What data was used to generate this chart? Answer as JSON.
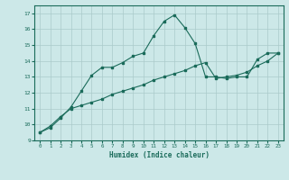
{
  "xlabel": "Humidex (Indice chaleur)",
  "background_color": "#cce8e8",
  "grid_color": "#aacaca",
  "line_color": "#1a6b5a",
  "xlim": [
    -0.5,
    23.5
  ],
  "ylim": [
    9,
    17.5
  ],
  "xticks": [
    0,
    1,
    2,
    3,
    4,
    5,
    6,
    7,
    8,
    9,
    10,
    11,
    12,
    13,
    14,
    15,
    16,
    17,
    18,
    19,
    20,
    21,
    22,
    23
  ],
  "yticks": [
    9,
    10,
    11,
    12,
    13,
    14,
    15,
    16,
    17
  ],
  "line1_x": [
    0,
    1,
    2,
    3,
    4,
    5,
    6,
    7,
    8,
    9,
    10,
    11,
    12,
    13,
    14,
    15,
    16,
    17,
    18,
    19,
    20,
    21,
    22,
    23
  ],
  "line1_y": [
    9.5,
    9.8,
    10.4,
    11.1,
    12.1,
    13.1,
    13.6,
    13.6,
    13.9,
    14.3,
    14.5,
    15.6,
    16.5,
    16.9,
    16.1,
    15.1,
    13.0,
    13.0,
    12.9,
    13.0,
    13.0,
    14.1,
    14.5,
    14.5
  ],
  "line2_x": [
    0,
    1,
    2,
    3,
    4,
    5,
    6,
    7,
    8,
    9,
    10,
    11,
    12,
    13,
    14,
    15,
    16,
    17,
    18,
    19,
    20,
    21,
    22,
    23
  ],
  "line2_y": [
    9.5,
    9.9,
    10.5,
    11.0,
    11.2,
    11.4,
    11.6,
    11.9,
    12.1,
    12.3,
    12.5,
    12.8,
    13.0,
    13.2,
    13.4,
    13.7,
    13.9,
    12.9,
    13.0,
    13.1,
    13.3,
    13.7,
    14.0,
    14.5
  ]
}
